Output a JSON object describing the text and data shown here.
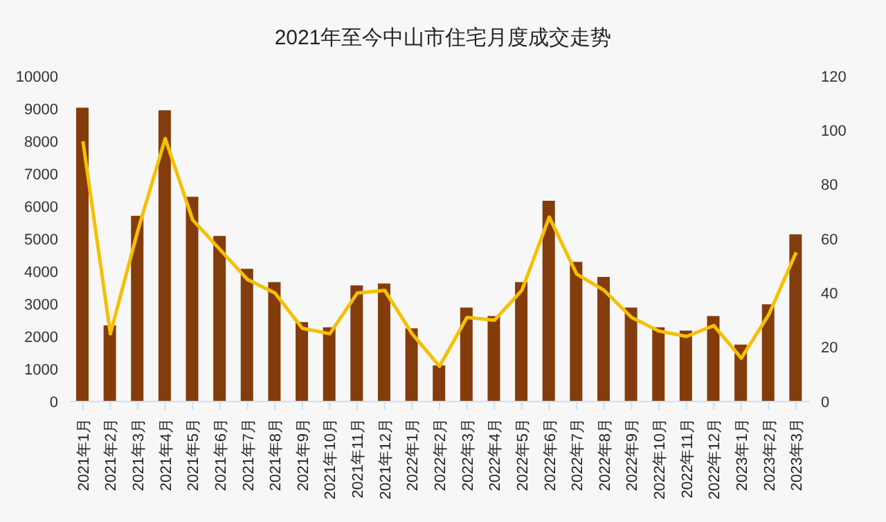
{
  "chart_data": {
    "type": "bar",
    "title": "2021年至今中山市住宅月度成交走势",
    "categories": [
      "2021年1月",
      "2021年2月",
      "2021年3月",
      "2021年4月",
      "2021年5月",
      "2021年6月",
      "2021年7月",
      "2021年8月",
      "2021年9月",
      "2021年10月",
      "2021年11月",
      "2021年12月",
      "2022年1月",
      "2022年2月",
      "2022年3月",
      "2022年4月",
      "2022年5月",
      "2022年6月",
      "2022年7月",
      "2022年8月",
      "2022年9月",
      "2022年10月",
      "2022年11月",
      "2022年12月",
      "2023年1月",
      "2023年2月",
      "2023年3月"
    ],
    "series": [
      {
        "color": "#843c0c",
        "values": [
          9030,
          2340,
          5710,
          8950,
          6290,
          5090,
          4080,
          3670,
          2440,
          2280,
          3570,
          3630,
          2250,
          1110,
          2890,
          2630,
          3670,
          6170,
          4290,
          3830,
          2890,
          2280,
          2180,
          2630,
          1750,
          2990,
          5140
        ]
      },
      {
        "type": "line",
        "axis": "y2",
        "color": "#f5c000",
        "values": [
          96,
          25,
          63,
          97,
          67,
          56,
          45,
          40,
          27,
          25,
          40,
          41,
          25,
          13,
          31,
          30,
          41,
          68,
          47,
          41,
          31,
          26,
          24,
          28,
          16,
          32,
          55
        ]
      }
    ],
    "ylim": [
      0,
      10000
    ],
    "yticks": [
      0,
      1000,
      2000,
      3000,
      4000,
      5000,
      6000,
      7000,
      8000,
      9000,
      10000
    ],
    "y2lim": [
      0,
      120
    ],
    "y2ticks": [
      0,
      20,
      40,
      60,
      80,
      100,
      120
    ],
    "marker": "none"
  }
}
